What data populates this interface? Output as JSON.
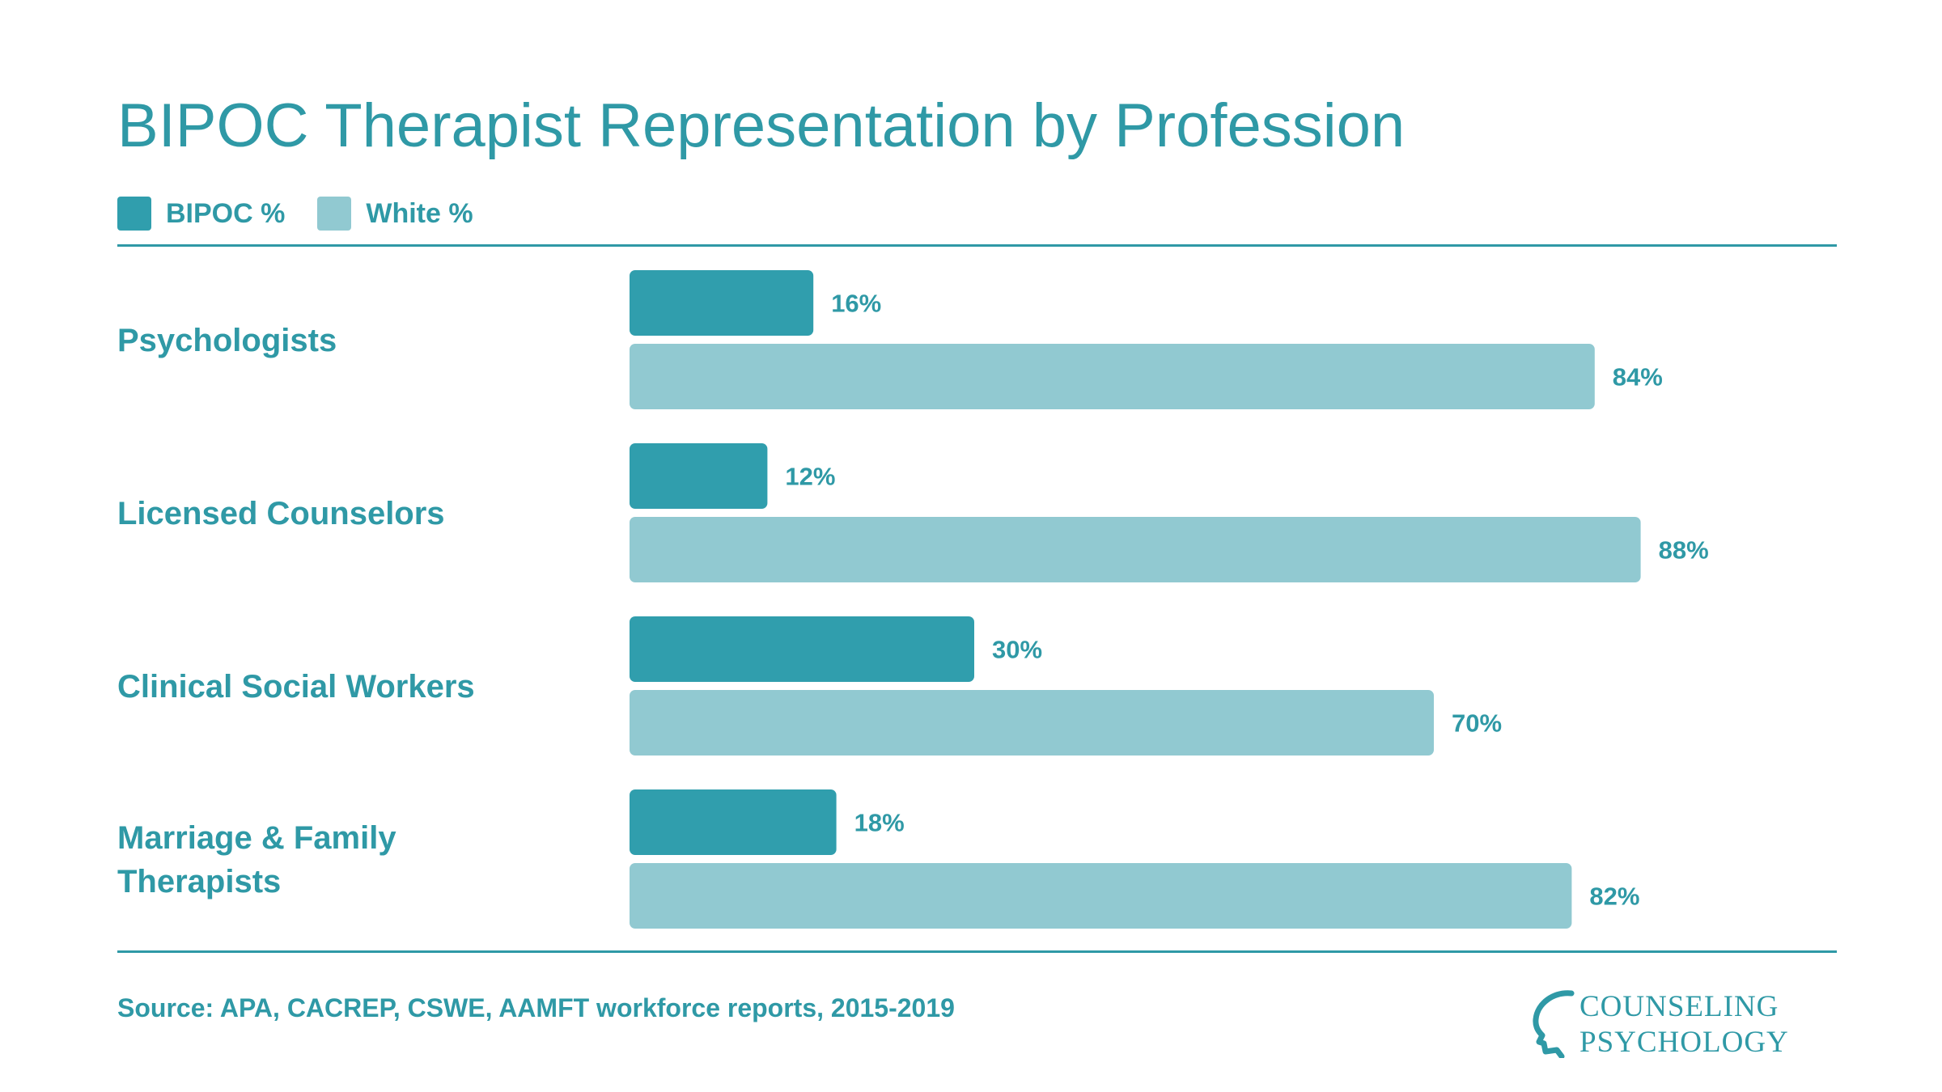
{
  "title": "BIPOC Therapist Representation by Profession",
  "colors": {
    "bipoc": "#309ead",
    "white": "#91c9d1",
    "text": "#2f99a6"
  },
  "legend": [
    {
      "label": "BIPOC %",
      "color": "#309ead"
    },
    {
      "label": "White %",
      "color": "#91c9d1"
    }
  ],
  "chart_data": {
    "type": "bar",
    "orientation": "horizontal",
    "categories": [
      "Psychologists",
      "Licensed Counselors",
      "Clinical Social Workers",
      "Marriage & Family Therapists"
    ],
    "category_lines": [
      [
        "Psychologists"
      ],
      [
        "Licensed Counselors"
      ],
      [
        "Clinical Social Workers"
      ],
      [
        "Marriage & Family",
        "Therapists"
      ]
    ],
    "series": [
      {
        "name": "BIPOC %",
        "values": [
          16,
          12,
          30,
          18
        ]
      },
      {
        "name": "White %",
        "values": [
          84,
          88,
          70,
          82
        ]
      }
    ],
    "value_labels": [
      [
        "16%",
        "12%",
        "30%",
        "18%"
      ],
      [
        "84%",
        "88%",
        "70%",
        "82%"
      ]
    ],
    "xlim": [
      0,
      100
    ],
    "grid": false,
    "legend_position": "top-left"
  },
  "source": "Source: APA, CACREP, CSWE, AAMFT workforce reports, 2015-2019",
  "logo": {
    "line1": "COUNSELING",
    "line2": "PSYCHOLOGY"
  }
}
